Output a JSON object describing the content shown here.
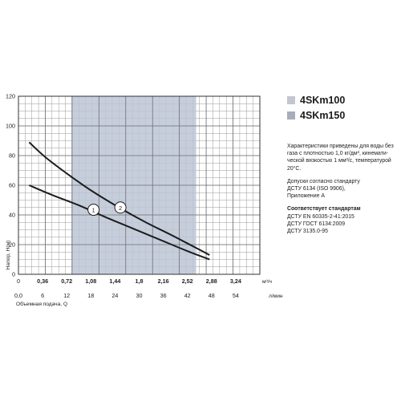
{
  "chart_data": {
    "type": "line",
    "ylabel": "Напор, H(м)",
    "xlabel_bottom": "Объемная подача, Q",
    "x_unit_top": "м³/ч",
    "x_unit_bottom": "л/мин",
    "y_ticks": [
      "0",
      "20",
      "40",
      "60",
      "80",
      "100",
      "120"
    ],
    "ylim": [
      0,
      120
    ],
    "x_ticks_top": [
      "0,36",
      "0,72",
      "1,08",
      "1,44",
      "1,8",
      "2,16",
      "2,52",
      "2,88",
      "3,24"
    ],
    "x_ticks_bottom": [
      "0,0",
      "6",
      "12",
      "18",
      "24",
      "30",
      "36",
      "42",
      "48",
      "54"
    ],
    "xlim": [
      0,
      3.6
    ],
    "grid": true,
    "shaded_region": {
      "x_min": 0.79,
      "x_max": 2.65
    },
    "series": [
      {
        "name": "4SKm100",
        "marker": "1",
        "x": [
          0.16,
          0.5,
          0.9,
          1.3,
          1.7,
          2.1,
          2.5,
          2.85
        ],
        "y": [
          60,
          53.5,
          46.5,
          38.5,
          31,
          23.5,
          16,
          10
        ]
      },
      {
        "name": "4SKm150",
        "marker": "2",
        "x": [
          0.16,
          0.4,
          0.75,
          1.1,
          1.5,
          1.9,
          2.3,
          2.85
        ],
        "y": [
          89,
          79,
          67,
          56,
          45,
          35,
          26,
          13
        ]
      }
    ]
  },
  "legend": {
    "items": [
      {
        "label": "4SKm100",
        "color": "#c3c6ce"
      },
      {
        "label": "4SKm150",
        "color": "#a6adbb"
      }
    ]
  },
  "notes": {
    "characteristics": [
      "Характеристики приведены для воды без",
      "газа с плотностью 1,0 кг/дм³, кинемати-",
      "ческой вязкостью 1 мм²/с, температурой",
      "20°С."
    ],
    "standards_ok": [
      "Допуски согласно стандарту",
      "ДСТУ 6134 (ISO 9906),",
      "Приложение А"
    ],
    "compliance_title": "Соответствует стандартам",
    "compliance": [
      "ДСТУ EN 60335-2-41:2015",
      "ДСТУ ГОСТ 6134:2009",
      "ДСТУ 3135.0-95"
    ]
  },
  "colors": {
    "shade": "#bcc6d6",
    "curve": "#1c1c1c",
    "grid": "#9a9a9a"
  }
}
